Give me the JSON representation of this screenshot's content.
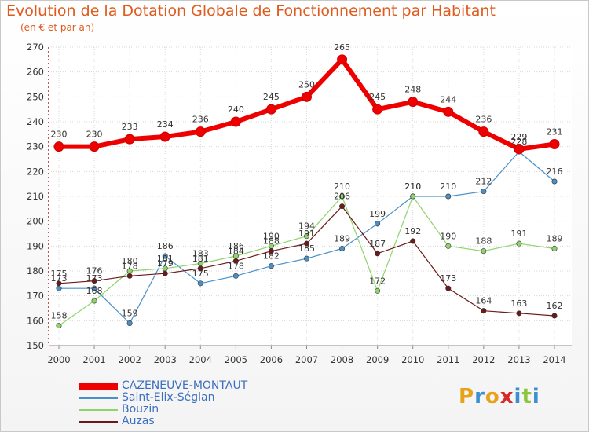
{
  "chart_data": {
    "type": "line",
    "title": "Evolution de la Dotation Globale de Fonctionnement par Habitant",
    "subtitle": "(en € et par an)",
    "x": [
      "2000",
      "2001",
      "2002",
      "2003",
      "2004",
      "2005",
      "2006",
      "2007",
      "2008",
      "2009",
      "2010",
      "2011",
      "2012",
      "2013",
      "2014"
    ],
    "ylim": [
      150,
      270
    ],
    "yticks": [
      150,
      160,
      170,
      180,
      190,
      200,
      210,
      220,
      230,
      240,
      250,
      260,
      270
    ],
    "series": [
      {
        "name": "Saint-Elix-Séglan",
        "color": "#4a90c8",
        "width": 1.2,
        "values": [
          173,
          173,
          159,
          186,
          175,
          178,
          182,
          185,
          189,
          199,
          210,
          210,
          212,
          228,
          216
        ]
      },
      {
        "name": "Bouzin",
        "color": "#8ed46a",
        "width": 1.2,
        "values": [
          158,
          168,
          180,
          181,
          183,
          186,
          190,
          194,
          210,
          172,
          210,
          190,
          188,
          191,
          189
        ]
      },
      {
        "name": "Auzas",
        "color": "#6b1a1a",
        "width": 1.2,
        "values": [
          175,
          176,
          178,
          179,
          181,
          184,
          188,
          191,
          206,
          187,
          192,
          173,
          164,
          163,
          162
        ]
      },
      {
        "name": "CAZENEUVE-MONTAUT",
        "color": "#ee0000",
        "width": 6,
        "values": [
          230,
          230,
          233,
          234,
          236,
          240,
          245,
          250,
          265,
          245,
          248,
          244,
          236,
          229,
          231
        ]
      }
    ]
  },
  "legend": {
    "items": [
      {
        "name": "CAZENEUVE-MONTAUT",
        "color": "#ee0000"
      },
      {
        "name": "Saint-Elix-Séglan",
        "color": "#4a90c8"
      },
      {
        "name": "Bouzin",
        "color": "#8ed46a"
      },
      {
        "name": "Auzas",
        "color": "#6b1a1a"
      }
    ]
  },
  "logo": {
    "text": "Proxiti"
  }
}
